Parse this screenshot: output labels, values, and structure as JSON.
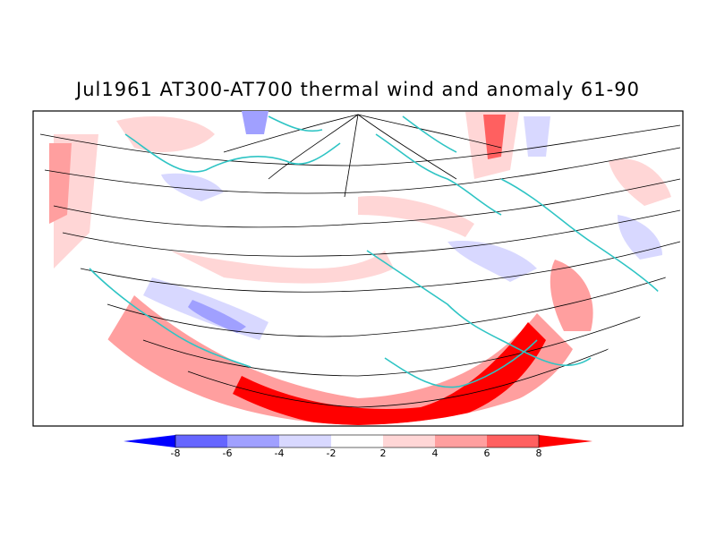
{
  "title": "Jul1961 AT300-AT700 thermal wind and anomaly 61-90",
  "map": {
    "type": "polar-stereographic thermal wind streamlines with shaded anomaly",
    "land_outline_color": "#2ec4c4",
    "streamline_color": "#000000"
  },
  "colorbar": {
    "ticks": [
      "-8",
      "-6",
      "-4",
      "-2",
      "2",
      "4",
      "6",
      "8"
    ],
    "colors": [
      "#0000ff",
      "#6666ff",
      "#a0a0ff",
      "#d8d8ff",
      "#ffffff",
      "#ffd6d6",
      "#ff9f9f",
      "#ff6060",
      "#ff0000"
    ]
  }
}
